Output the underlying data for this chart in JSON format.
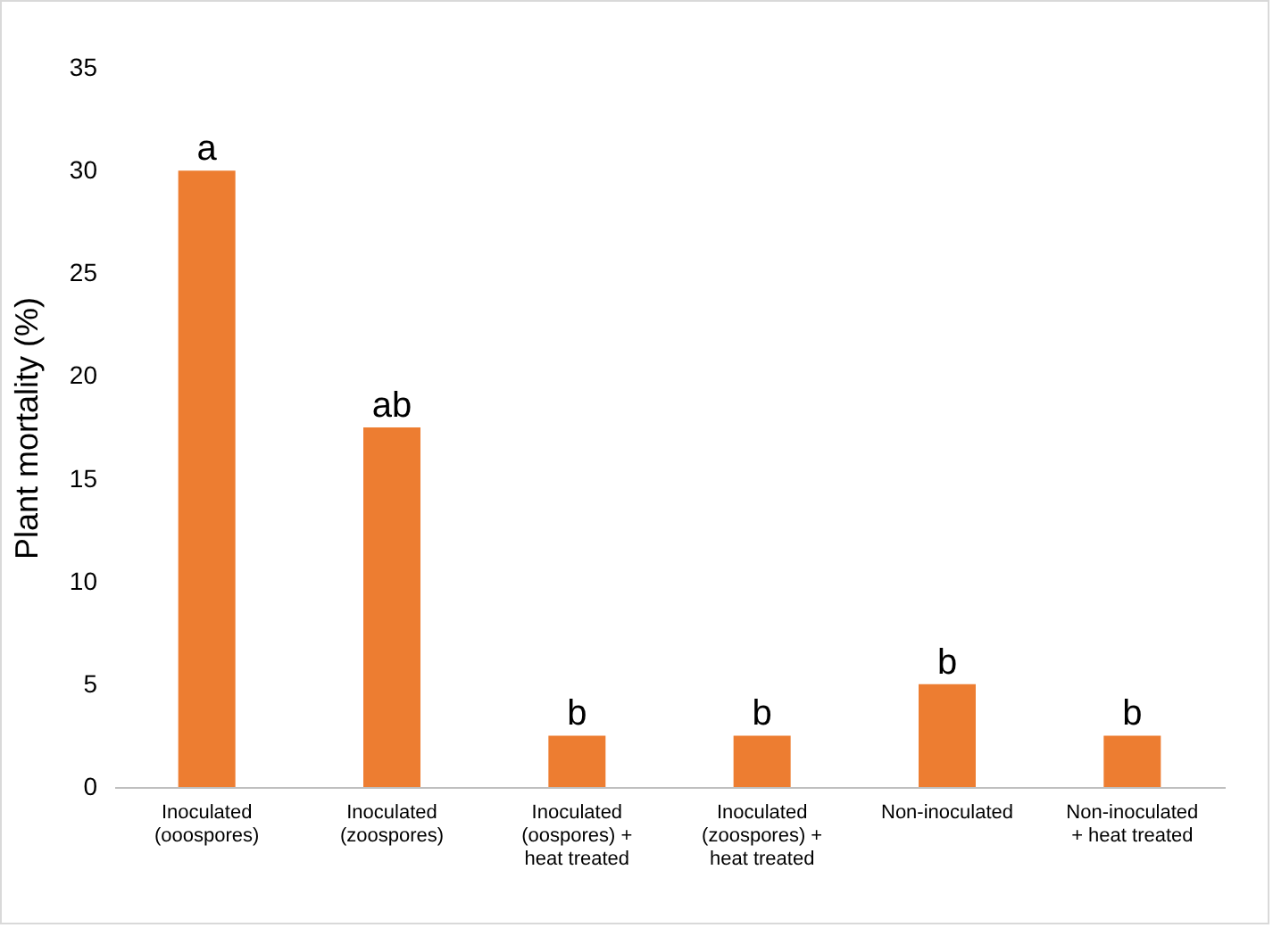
{
  "chart_data": {
    "type": "bar",
    "ylabel": "Plant mortality (%)",
    "categories": [
      "Inoculated\n(ooospores)",
      "Inoculated\n(zoospores)",
      "Inoculated\n(oospores) +\nheat treated",
      "Inoculated\n(zoospores) +\nheat treated",
      "Non-inoculated",
      "Non-inoculated\n+ heat treated"
    ],
    "values": [
      30,
      17.5,
      2.5,
      2.5,
      5,
      2.5
    ],
    "value_labels": [
      "a",
      "ab",
      "b",
      "b",
      "b",
      "b"
    ],
    "color": "#ed7d31",
    "ylim": [
      0,
      35
    ],
    "yticks": [
      0,
      5,
      10,
      15,
      20,
      25,
      30,
      35
    ],
    "grid": false
  }
}
